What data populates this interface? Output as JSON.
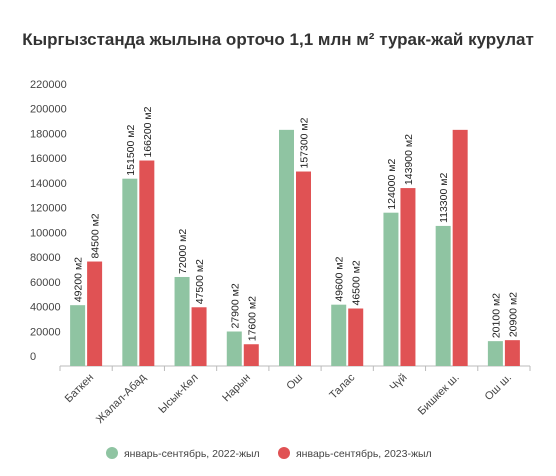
{
  "chart_data": {
    "type": "bar",
    "title": "Кыргызстанда жылына орточо 1,1 млн м² турак-жай курулат",
    "categories": [
      "Баткен",
      "Жалал-Абад",
      "Ысык-Көл",
      "Нарын",
      "Ош",
      "Талас",
      "Чүй",
      "Бишкек ш.",
      "Ош ш."
    ],
    "series": [
      {
        "name": "январь-сентябрь, 2022-жыл",
        "color": "#8fc4a2",
        "values": [
          49200,
          151500,
          72000,
          27900,
          191000,
          49600,
          124000,
          113300,
          20100
        ],
        "labels": [
          "49200 м2",
          "151500 м2",
          "72000 м2",
          "27900 м2",
          "",
          "49600 м2",
          "124000 м2",
          "113300 м2",
          "20100 м2"
        ]
      },
      {
        "name": "январь-сентябрь, 2023-жыл",
        "color": "#e05254",
        "values": [
          84500,
          166200,
          47500,
          17600,
          157300,
          46500,
          143900,
          191000,
          20900
        ],
        "labels": [
          "84500 м2",
          "166200 м2",
          "47500 м2",
          "17600 м2",
          "157300 м2",
          "46500 м2",
          "143900 м2",
          "",
          "20900 м2"
        ]
      }
    ],
    "yticks": [
      0,
      20000,
      40000,
      60000,
      80000,
      100000,
      120000,
      140000,
      160000,
      180000,
      200000,
      220000
    ],
    "ylim": [
      0,
      220000
    ],
    "grid": false,
    "legend_position": "bottom"
  }
}
